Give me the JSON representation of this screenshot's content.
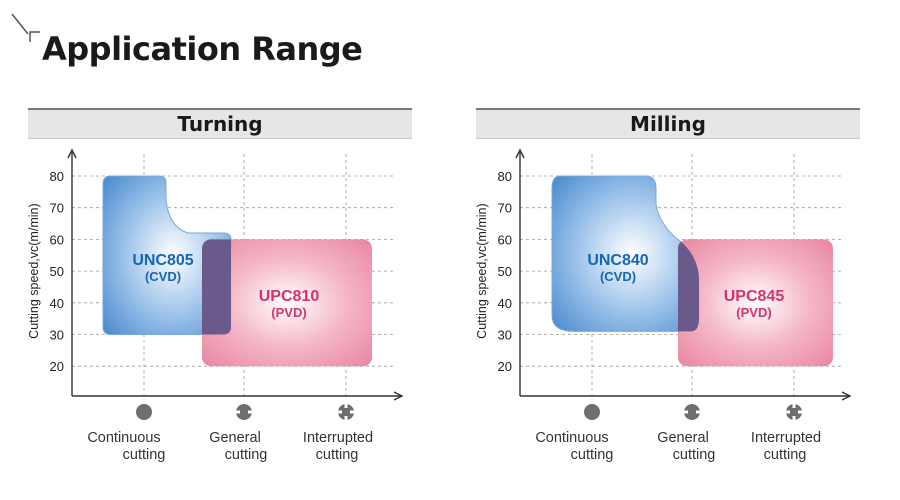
{
  "page": {
    "title": "Application Range"
  },
  "y_axis": {
    "label": "Cutting speed,vc(m/min)",
    "ticks": [
      "80",
      "70",
      "60",
      "50",
      "40",
      "30",
      "20"
    ]
  },
  "x_axis": {
    "categories": [
      {
        "line1": "Continuous",
        "line2": "cutting",
        "icon": "continuous-cutting-icon"
      },
      {
        "line1": "General",
        "line2": "cutting",
        "icon": "general-cutting-icon"
      },
      {
        "line1": "Interrupted",
        "line2": "cutting",
        "icon": "interrupted-cutting-icon"
      }
    ]
  },
  "colors": {
    "cvd": "#4f8fd0",
    "pvd": "#e8809c",
    "cvd_text": "#1565b8",
    "pvd_text": "#d43270",
    "overlap": "#6a5a8c"
  },
  "chart_data": [
    {
      "type": "area",
      "title": "Turning",
      "ylabel": "Cutting speed,vc(m/min)",
      "ylim": [
        10,
        90
      ],
      "categories": [
        "Continuous cutting",
        "General cutting",
        "Interrupted cutting"
      ],
      "regions": [
        {
          "name": "UNC805",
          "coating": "(CVD)",
          "vc_range": [
            30,
            80
          ],
          "upper_step_vc": 62
        },
        {
          "name": "UPC810",
          "coating": "(PVD)",
          "vc_range": [
            20,
            60
          ]
        }
      ]
    },
    {
      "type": "area",
      "title": "Milling",
      "ylabel": "Cutting speed,vc(m/min)",
      "ylim": [
        10,
        90
      ],
      "categories": [
        "Continuous cutting",
        "General cutting",
        "Interrupted cutting"
      ],
      "regions": [
        {
          "name": "UNC840",
          "coating": "(CVD)",
          "vc_range": [
            31,
            80
          ]
        },
        {
          "name": "UPC845",
          "coating": "(PVD)",
          "vc_range": [
            20,
            60
          ]
        }
      ]
    }
  ]
}
